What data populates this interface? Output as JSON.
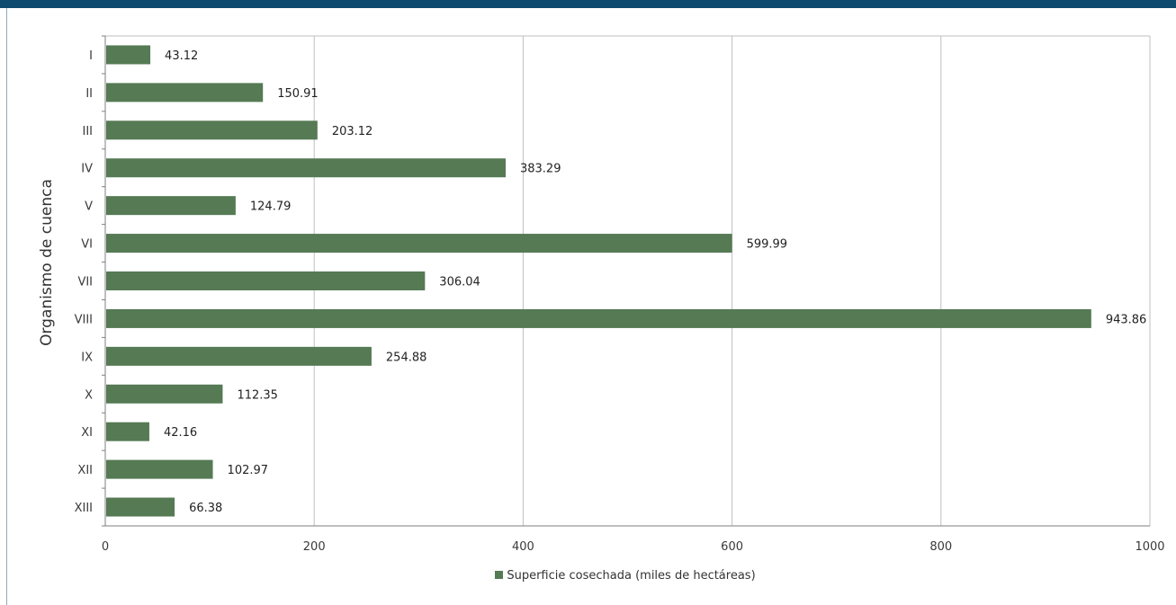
{
  "colors": {
    "bar": "#557a54",
    "header": "#0e4a6e",
    "grid": "#bfbfbf"
  },
  "chart_data": {
    "type": "bar",
    "orientation": "horizontal",
    "categories": [
      "I",
      "II",
      "III",
      "IV",
      "V",
      "VI",
      "VII",
      "VIII",
      "IX",
      "X",
      "XI",
      "XII",
      "XIII"
    ],
    "series": [
      {
        "name": "Superficie cosechada (miles de hectáreas)",
        "values": [
          43.12,
          150.91,
          203.12,
          383.29,
          124.79,
          599.99,
          306.04,
          943.86,
          254.88,
          112.35,
          42.16,
          102.97,
          66.38
        ]
      }
    ],
    "title": "",
    "xlabel": "",
    "ylabel": "Organismo de cuenca",
    "xlim": [
      0,
      1000
    ],
    "xticks": [
      0,
      200,
      400,
      600,
      800,
      1000
    ],
    "grid": "vertical",
    "legend": "bottom"
  }
}
